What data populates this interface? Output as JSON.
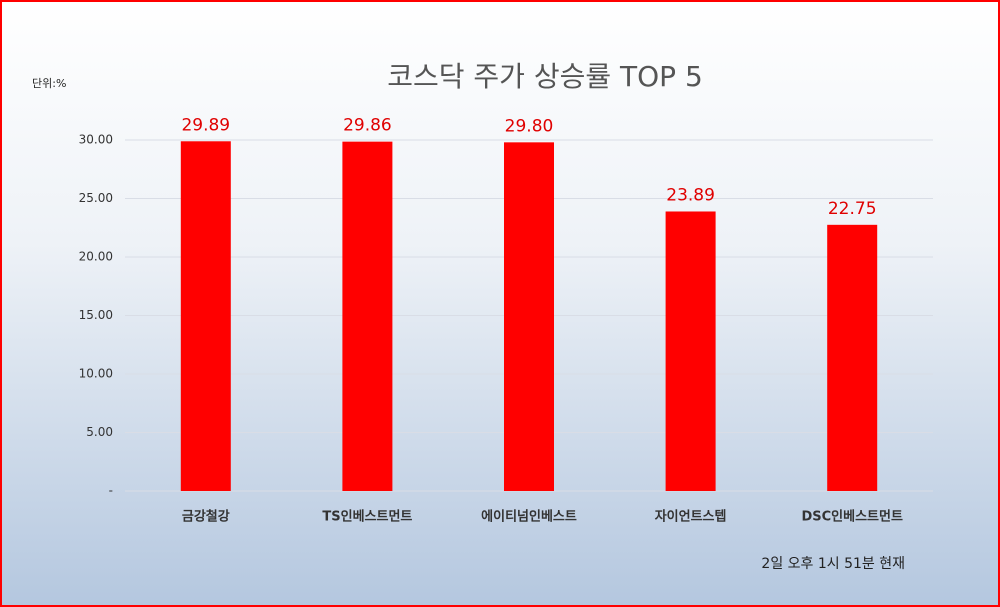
{
  "chart_data": {
    "type": "bar",
    "title": "코스닥 주가 상승률 TOP 5",
    "unit_label": "단위:%",
    "categories": [
      "금강철강",
      "TS인베스트먼트",
      "에이티넘인베스트",
      "자이언트스텝",
      "DSC인베스트먼트"
    ],
    "values": [
      29.89,
      29.86,
      29.8,
      23.89,
      22.75
    ],
    "value_labels": [
      "29.89",
      "29.86",
      "29.80",
      "23.89",
      "22.75"
    ],
    "color": "#ff0000",
    "ylim": [
      0,
      30
    ],
    "yticks": [
      {
        "value": 0,
        "label": "-"
      },
      {
        "value": 5,
        "label": "5.00"
      },
      {
        "value": 10,
        "label": "10.00"
      },
      {
        "value": 15,
        "label": "15.00"
      },
      {
        "value": 20,
        "label": "20.00"
      },
      {
        "value": 25,
        "label": "25.00"
      },
      {
        "value": 30,
        "label": "30.00"
      }
    ],
    "grid": true,
    "footnote": "2일 오후 1시 51분 현재"
  }
}
